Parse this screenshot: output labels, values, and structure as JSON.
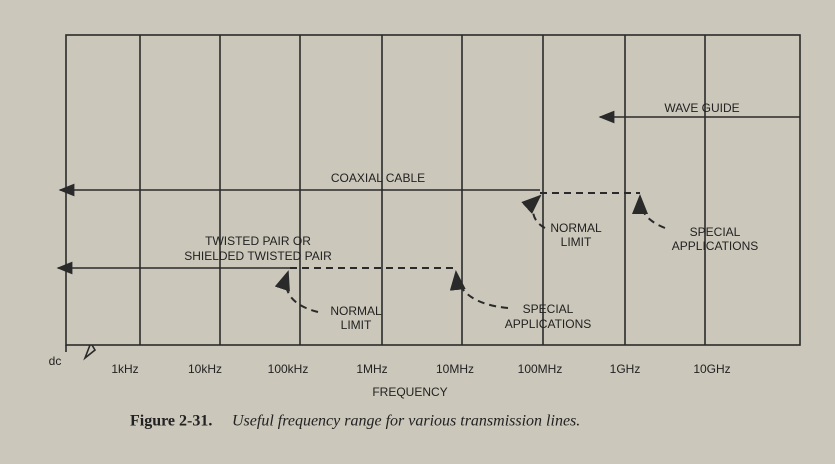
{
  "diagram": {
    "x_axis": {
      "labels": [
        "dc",
        "1kHz",
        "10kHz",
        "100kHz",
        "1MHz",
        "10MHz",
        "100MHz",
        "1GHz",
        "10GHz"
      ],
      "title": "FREQUENCY"
    },
    "ranges": {
      "wave_guide": {
        "label": "WAVE GUIDE"
      },
      "coaxial_cable": {
        "label": "COAXIAL CABLE",
        "normal_limit": [
          "NORMAL",
          "LIMIT"
        ],
        "special": [
          "SPECIAL",
          "APPLICATIONS"
        ]
      },
      "twisted_pair": {
        "label": [
          "TWISTED PAIR OR",
          "SHIELDED TWISTED PAIR"
        ],
        "normal_limit": [
          "NORMAL",
          "LIMIT"
        ],
        "special": [
          "SPECIAL",
          "APPLICATIONS"
        ]
      }
    },
    "caption": {
      "number": "Figure 2-31.",
      "text": "Useful frequency range for various transmission lines."
    }
  }
}
